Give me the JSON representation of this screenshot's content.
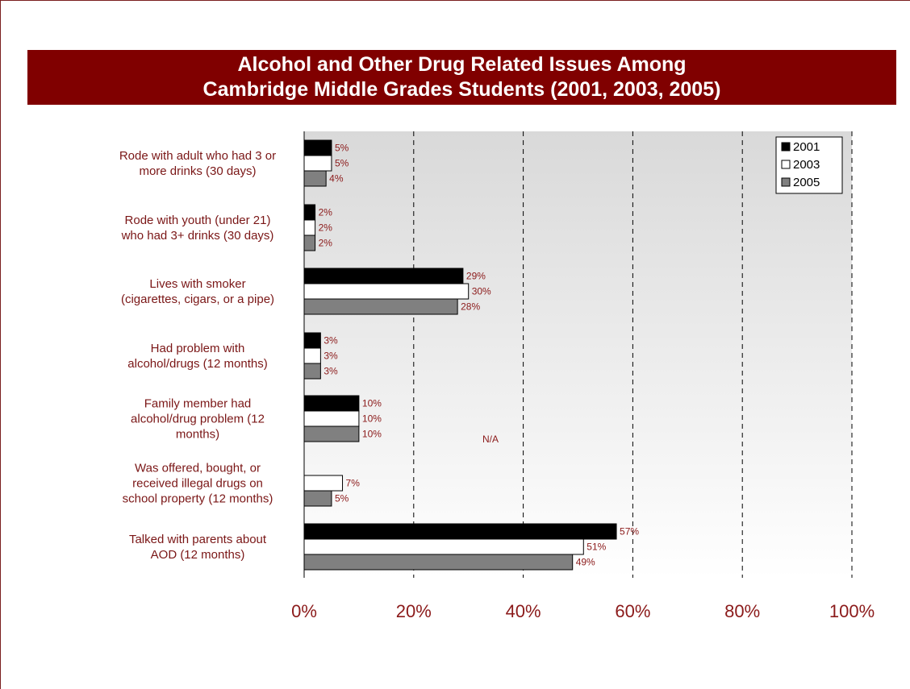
{
  "chart_data": {
    "type": "bar",
    "orientation": "horizontal",
    "title_lines": [
      "Alcohol and Other Drug Related Issues Among",
      "Cambridge Middle Grades Students (2001, 2003, 2005)"
    ],
    "categories": [
      [
        "Rode with adult who had 3 or",
        "more drinks (30 days)"
      ],
      [
        "Rode with youth (under 21)",
        "who had 3+ drinks (30 days)"
      ],
      [
        "Lives with smoker",
        "(cigarettes, cigars, or a pipe)"
      ],
      [
        "Had problem with",
        "alcohol/drugs (12 months)"
      ],
      [
        "Family member had",
        "alcohol/drug problem (12",
        "months)"
      ],
      [
        "Was offered, bought, or",
        "received illegal drugs on",
        "school property (12 months)"
      ],
      [
        "Talked with parents about",
        "AOD (12 months)"
      ]
    ],
    "series": [
      {
        "name": "2001",
        "color": "#000000",
        "values": [
          5,
          2,
          29,
          3,
          10,
          null,
          57
        ],
        "labels": [
          "5%",
          "2%",
          "29%",
          "3%",
          "10%",
          "",
          "57%"
        ]
      },
      {
        "name": "2003",
        "color": "#ffffff",
        "values": [
          5,
          2,
          30,
          3,
          10,
          7,
          51
        ],
        "labels": [
          "5%",
          "2%",
          "30%",
          "3%",
          "10%",
          "7%",
          "51%"
        ]
      },
      {
        "name": "2005",
        "color": "#808080",
        "values": [
          4,
          2,
          28,
          3,
          10,
          5,
          49
        ],
        "labels": [
          "4%",
          "2%",
          "28%",
          "3%",
          "10%",
          "5%",
          "49%"
        ]
      }
    ],
    "xlim": [
      0,
      100
    ],
    "ticks": [
      "0%",
      "20%",
      "40%",
      "60%",
      "80%",
      "100%"
    ],
    "tick_values": [
      0,
      20,
      40,
      60,
      80,
      100
    ],
    "annotation": "N/A",
    "legend_position": "top-right",
    "grid": "vertical dashed"
  }
}
